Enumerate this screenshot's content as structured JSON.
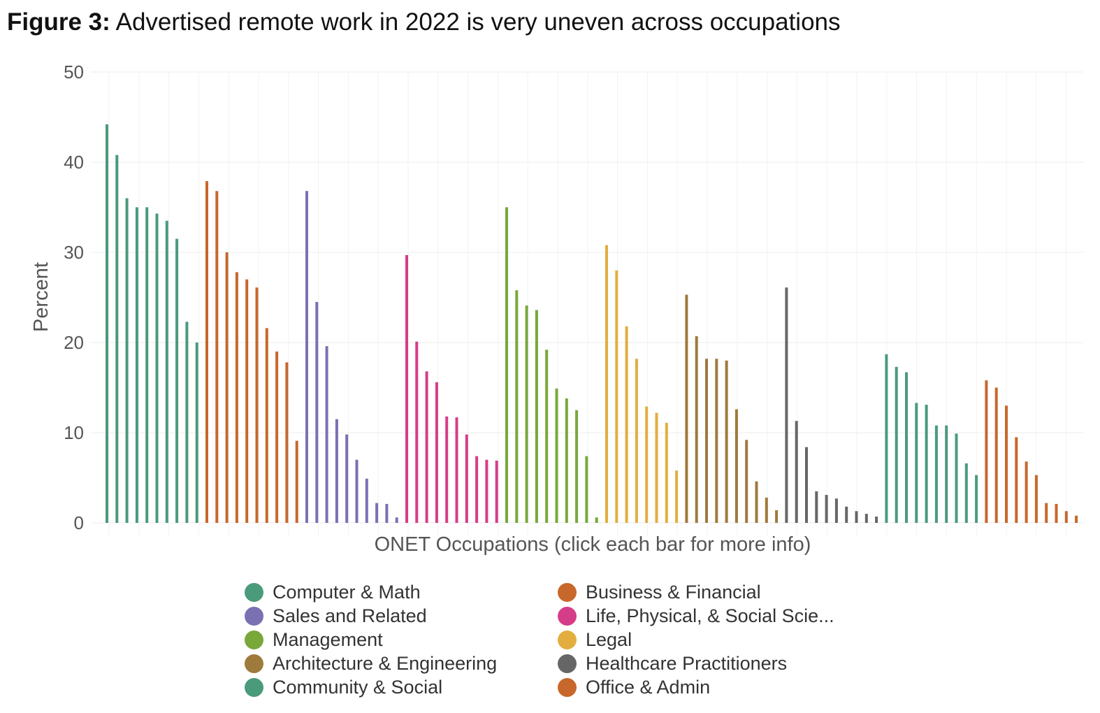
{
  "figure": {
    "label": "Figure 3:",
    "title": "Advertised remote work in 2022 is very uneven across occupations"
  },
  "chart_data": {
    "type": "bar",
    "title": "Advertised remote work in 2022 is very uneven across occupations",
    "xlabel": "ONET Occupations (click each bar for more info)",
    "ylabel": "Percent",
    "ylim": [
      0,
      50
    ],
    "yticks": [
      0,
      10,
      20,
      30,
      40,
      50
    ],
    "grid": true,
    "legend_placement": "bottom",
    "series": [
      {
        "name": "Computer & Math",
        "color": "#4a9a7c",
        "values": [
          44.2,
          40.8,
          36.0,
          35.0,
          35.0,
          34.3,
          33.5,
          31.5,
          22.3,
          20.0
        ]
      },
      {
        "name": "Business & Financial",
        "color": "#c8672b",
        "values": [
          37.9,
          36.8,
          30.0,
          27.8,
          27.0,
          26.1,
          21.6,
          19.0,
          17.8,
          9.1
        ]
      },
      {
        "name": "Sales and Related",
        "color": "#7a71b3",
        "values": [
          36.8,
          24.5,
          19.6,
          11.5,
          9.8,
          7.0,
          4.9,
          2.2,
          2.1,
          0.6
        ]
      },
      {
        "name": "Life, Physical, & Social Scie...",
        "color": "#d63d88",
        "values": [
          29.7,
          20.1,
          16.8,
          15.6,
          11.8,
          11.7,
          9.8,
          7.4,
          7.0,
          6.9
        ]
      },
      {
        "name": "Management",
        "color": "#78a83a",
        "values": [
          35.0,
          25.8,
          24.1,
          23.6,
          19.2,
          14.9,
          13.8,
          12.5,
          7.4,
          0.6
        ]
      },
      {
        "name": "Legal",
        "color": "#e3ae3f",
        "values": [
          30.8,
          28.0,
          21.8,
          18.2,
          12.9,
          12.2,
          11.1,
          5.8
        ]
      },
      {
        "name": "Architecture & Engineering",
        "color": "#9e7a3c",
        "values": [
          25.3,
          20.7,
          18.2,
          18.2,
          18.0,
          12.6,
          9.2,
          4.6,
          2.8,
          1.4
        ]
      },
      {
        "name": "Healthcare Practitioners",
        "color": "#666666",
        "values": [
          26.1,
          11.3,
          8.4,
          3.5,
          3.1,
          2.7,
          1.8,
          1.3,
          1.0,
          0.7
        ]
      },
      {
        "name": "Community & Social",
        "color": "#4a9a7c",
        "values": [
          18.7,
          17.3,
          16.7,
          13.3,
          13.1,
          10.8,
          10.8,
          9.9,
          6.6,
          5.3
        ]
      },
      {
        "name": "Office & Admin",
        "color": "#c8672b",
        "values": [
          15.8,
          15.0,
          13.0,
          9.5,
          6.8,
          5.3,
          2.2,
          2.1,
          1.3,
          0.8
        ]
      }
    ]
  },
  "legend_columns": [
    [
      "Computer & Math",
      "Sales and Related",
      "Management",
      "Architecture & Engineering",
      "Community & Social"
    ],
    [
      "Business & Financial",
      "Life, Physical, & Social Scie...",
      "Legal",
      "Healthcare Practitioners",
      "Office & Admin"
    ]
  ]
}
